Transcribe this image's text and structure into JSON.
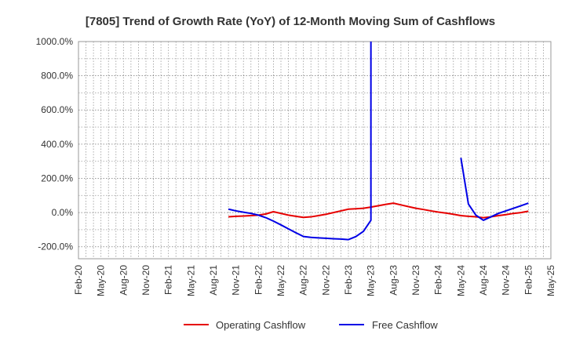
{
  "chart_data": {
    "type": "line",
    "title": "[7805]  Trend of Growth Rate (YoY) of 12-Month Moving Sum of Cashflows",
    "xlabel": "",
    "ylabel": "",
    "ylim": [
      -270,
      1000
    ],
    "yticks": [
      "1000.0%",
      "800.0%",
      "600.0%",
      "400.0%",
      "200.0%",
      "0.0%",
      "-200.0%"
    ],
    "ytick_values": [
      1000,
      800,
      600,
      400,
      200,
      0,
      -200
    ],
    "xlim": [
      "2020-02",
      "2025-05"
    ],
    "xticks": [
      "Feb-20",
      "May-20",
      "Aug-20",
      "Nov-20",
      "Feb-21",
      "May-21",
      "Aug-21",
      "Nov-21",
      "Feb-22",
      "May-22",
      "Aug-22",
      "Nov-22",
      "Feb-23",
      "May-23",
      "Aug-23",
      "Nov-23",
      "Feb-24",
      "May-24",
      "Aug-24",
      "Nov-24",
      "Feb-25",
      "May-25"
    ],
    "grid": true,
    "legend_position": "bottom",
    "series": [
      {
        "name": "Operating Cashflow",
        "color": "#e60000",
        "points": [
          [
            "2021-10",
            -25
          ],
          [
            "2021-11",
            -22
          ],
          [
            "2021-12",
            -20
          ],
          [
            "2022-01",
            -18
          ],
          [
            "2022-02",
            -15
          ],
          [
            "2022-03",
            -8
          ],
          [
            "2022-04",
            5
          ],
          [
            "2022-05",
            -5
          ],
          [
            "2022-06",
            -15
          ],
          [
            "2022-07",
            -22
          ],
          [
            "2022-08",
            -28
          ],
          [
            "2022-09",
            -25
          ],
          [
            "2022-10",
            -18
          ],
          [
            "2022-11",
            -10
          ],
          [
            "2022-12",
            0
          ],
          [
            "2023-01",
            10
          ],
          [
            "2023-02",
            20
          ],
          [
            "2023-03",
            22
          ],
          [
            "2023-04",
            25
          ],
          [
            "2023-05",
            32
          ],
          [
            "2023-06",
            40
          ],
          [
            "2023-07",
            48
          ],
          [
            "2023-08",
            55
          ],
          [
            "2023-09",
            45
          ],
          [
            "2023-10",
            35
          ],
          [
            "2023-11",
            25
          ],
          [
            "2023-12",
            18
          ],
          [
            "2024-01",
            10
          ],
          [
            "2024-02",
            3
          ],
          [
            "2024-03",
            -3
          ],
          [
            "2024-04",
            -10
          ],
          [
            "2024-05",
            -18
          ],
          [
            "2024-06",
            -22
          ],
          [
            "2024-07",
            -25
          ],
          [
            "2024-08",
            -30
          ],
          [
            "2024-09",
            -25
          ],
          [
            "2024-10",
            -18
          ],
          [
            "2024-11",
            -12
          ],
          [
            "2024-12",
            -5
          ],
          [
            "2025-01",
            0
          ],
          [
            "2025-02",
            8
          ]
        ]
      },
      {
        "name": "Free Cashflow",
        "color": "#0000e6",
        "segments": [
          [
            [
              "2021-10",
              20
            ],
            [
              "2021-11",
              10
            ],
            [
              "2021-12",
              2
            ],
            [
              "2022-01",
              -5
            ],
            [
              "2022-02",
              -15
            ],
            [
              "2022-03",
              -30
            ],
            [
              "2022-04",
              -50
            ],
            [
              "2022-05",
              -72
            ],
            [
              "2022-06",
              -95
            ],
            [
              "2022-07",
              -118
            ],
            [
              "2022-08",
              -140
            ],
            [
              "2022-09",
              -145
            ],
            [
              "2022-10",
              -148
            ],
            [
              "2022-11",
              -150
            ],
            [
              "2022-12",
              -153
            ],
            [
              "2023-01",
              -155
            ],
            [
              "2023-02",
              -158
            ],
            [
              "2023-03",
              -140
            ],
            [
              "2023-04",
              -110
            ],
            [
              "2023-05",
              -45
            ],
            [
              "2023-05",
              1000
            ]
          ],
          [
            [
              "2024-05",
              320
            ],
            [
              "2024-06",
              50
            ],
            [
              "2024-07",
              -15
            ],
            [
              "2024-08",
              -45
            ],
            [
              "2024-09",
              -25
            ],
            [
              "2024-10",
              -5
            ],
            [
              "2024-11",
              10
            ],
            [
              "2024-12",
              25
            ],
            [
              "2025-01",
              40
            ],
            [
              "2025-02",
              55
            ]
          ]
        ]
      }
    ]
  }
}
